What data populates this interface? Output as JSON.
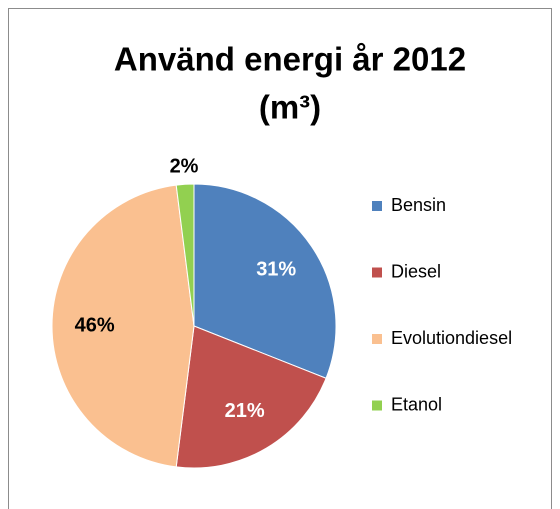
{
  "chart_data": {
    "type": "pie",
    "title": [
      "Använd energi år 2012",
      "(m³)"
    ],
    "categories": [
      "Bensin",
      "Diesel",
      "Evolutiondiesel",
      "Etanol"
    ],
    "values": [
      31,
      21,
      46,
      2
    ],
    "value_labels": [
      "31%",
      "21%",
      "46%",
      "2%"
    ],
    "colors": [
      "#4f81bd",
      "#c0504d",
      "#fac090",
      "#92d050"
    ],
    "value_label_colors": [
      "#ffffff",
      "#ffffff",
      "#000000",
      "#000000"
    ],
    "legend": "right"
  }
}
